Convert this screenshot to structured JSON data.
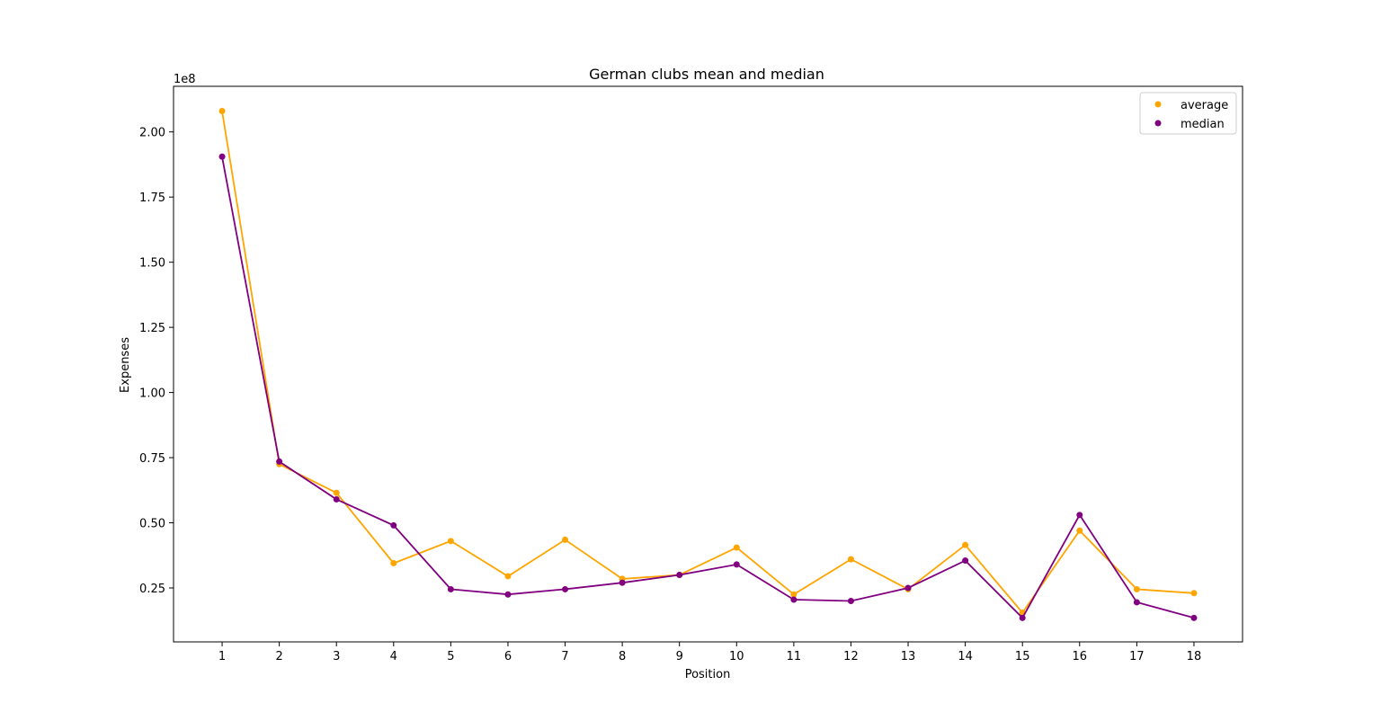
{
  "chart_data": {
    "type": "line",
    "title": "German clubs mean and median",
    "xlabel": "Position",
    "ylabel": "Expenses",
    "y_offset_label": "1e8",
    "x": [
      1,
      2,
      3,
      4,
      5,
      6,
      7,
      8,
      9,
      10,
      11,
      12,
      13,
      14,
      15,
      16,
      17,
      18
    ],
    "x_tick_labels": [
      "1",
      "2",
      "3",
      "4",
      "5",
      "6",
      "7",
      "8",
      "9",
      "10",
      "11",
      "12",
      "13",
      "14",
      "15",
      "16",
      "17",
      "18"
    ],
    "y_ticks": [
      0.25,
      0.5,
      0.75,
      1.0,
      1.25,
      1.5,
      1.75,
      2.0
    ],
    "y_tick_labels": [
      "0.25",
      "0.50",
      "0.75",
      "1.00",
      "1.25",
      "1.50",
      "1.75",
      "2.00"
    ],
    "ylim": [
      0.043,
      2.175
    ],
    "xlim": [
      0.15,
      18.85
    ],
    "grid": false,
    "legend_position": "top-right",
    "series": [
      {
        "name": "average",
        "color": "#ffa500",
        "values": [
          2.08,
          0.725,
          0.615,
          0.345,
          0.43,
          0.295,
          0.435,
          0.285,
          0.3,
          0.405,
          0.225,
          0.36,
          0.245,
          0.415,
          0.155,
          0.47,
          0.245,
          0.23
        ]
      },
      {
        "name": "median",
        "color": "#800080",
        "values": [
          1.905,
          0.735,
          0.59,
          0.49,
          0.245,
          0.225,
          0.245,
          0.27,
          0.3,
          0.34,
          0.205,
          0.2,
          0.25,
          0.355,
          0.135,
          0.53,
          0.195,
          0.135
        ]
      }
    ]
  }
}
